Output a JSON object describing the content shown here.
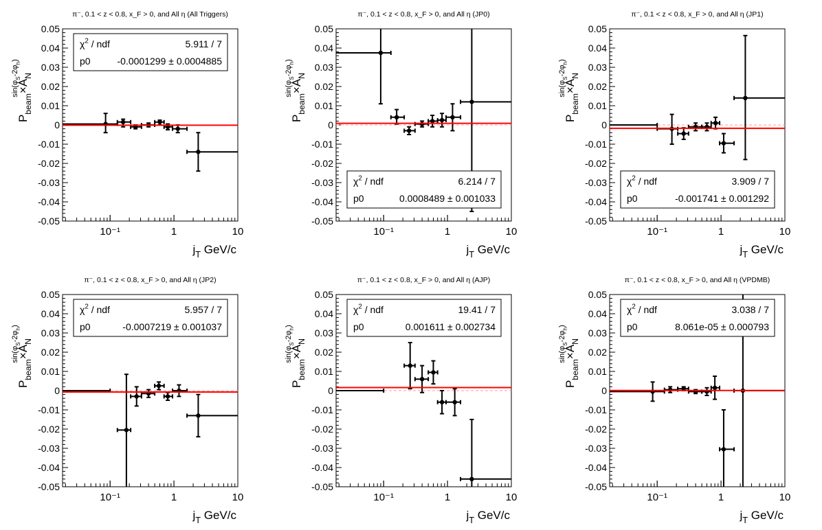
{
  "chart_data": [
    {
      "type": "scatter",
      "title": "π⁻, 0.1 < z < 0.8, x_F > 0, and All η (All Triggers)",
      "trigger": "All Triggers",
      "xlabel": "j_T GeV/c",
      "ylabel": "P_beam×A_N^sin(φ_S-2φ_h)",
      "xscale": "log",
      "xlim": [
        0.018,
        10
      ],
      "ylim": [
        -0.05,
        0.05
      ],
      "xticklabels": [
        "10⁻¹",
        "1",
        "10"
      ],
      "yticklabels": [
        "-0.05",
        "-0.04",
        "-0.03",
        "-0.02",
        "-0.01",
        "0",
        "0.01",
        "0.02",
        "0.03",
        "0.04",
        "0.05"
      ],
      "fit": {
        "chi2_label": "χ² / ndf",
        "chi2": "5.911 / 7",
        "p0_label": "p0",
        "p0": "-0.0001299 ± 0.0004885",
        "p0_value": -0.0001299
      },
      "legend_position": "top",
      "points": [
        {
          "x": 0.085,
          "y": 0.0005,
          "xlo": 0.018,
          "xhi": 0.13,
          "ylo": -0.004,
          "yhi": 0.006
        },
        {
          "x": 0.16,
          "y": 0.0015,
          "xlo": 0.13,
          "xhi": 0.21,
          "ylo": -0.001,
          "yhi": 0.003
        },
        {
          "x": 0.25,
          "y": -0.001,
          "xlo": 0.21,
          "xhi": 0.31,
          "ylo": -0.002,
          "yhi": 0.0
        },
        {
          "x": 0.4,
          "y": 0.0,
          "xlo": 0.31,
          "xhi": 0.5,
          "ylo": -0.001,
          "yhi": 0.001
        },
        {
          "x": 0.6,
          "y": 0.0015,
          "xlo": 0.5,
          "xhi": 0.7,
          "ylo": 0.0,
          "yhi": 0.0025
        },
        {
          "x": 0.8,
          "y": -0.001,
          "xlo": 0.7,
          "xhi": 0.95,
          "ylo": -0.0025,
          "yhi": 0.0005
        },
        {
          "x": 1.15,
          "y": -0.002,
          "xlo": 0.95,
          "xhi": 1.6,
          "ylo": -0.004,
          "yhi": 0.0
        },
        {
          "x": 2.4,
          "y": -0.014,
          "xlo": 1.6,
          "xhi": 10,
          "ylo": -0.024,
          "yhi": -0.004
        }
      ]
    },
    {
      "type": "scatter",
      "title": "π⁻, 0.1 < z < 0.8, x_F > 0, and All η (JP0)",
      "trigger": "JP0",
      "xlabel": "j_T GeV/c",
      "ylabel": "P_beam×A_N^sin(φ_S-2φ_h)",
      "xscale": "log",
      "xlim": [
        0.018,
        10
      ],
      "ylim": [
        -0.05,
        0.05
      ],
      "xticklabels": [
        "10⁻¹",
        "1",
        "10"
      ],
      "yticklabels": [
        "-0.05",
        "-0.04",
        "-0.03",
        "-0.02",
        "-0.01",
        "0",
        "0.01",
        "0.02",
        "0.03",
        "0.04",
        "0.05"
      ],
      "fit": {
        "chi2_label": "χ² / ndf",
        "chi2": "6.214 / 7",
        "p0_label": "p0",
        "p0": "0.0008489 ± 0.001033",
        "p0_value": 0.0008489
      },
      "legend_position": "bottom",
      "points": [
        {
          "x": 0.09,
          "y": 0.0375,
          "xlo": 0.018,
          "xhi": 0.13,
          "ylo": 0.011,
          "yhi": 0.05
        },
        {
          "x": 0.16,
          "y": 0.004,
          "xlo": 0.13,
          "xhi": 0.21,
          "ylo": 0.0005,
          "yhi": 0.008
        },
        {
          "x": 0.25,
          "y": -0.003,
          "xlo": 0.21,
          "xhi": 0.31,
          "ylo": -0.005,
          "yhi": -0.001
        },
        {
          "x": 0.4,
          "y": 0.0005,
          "xlo": 0.31,
          "xhi": 0.5,
          "ylo": -0.001,
          "yhi": 0.002
        },
        {
          "x": 0.58,
          "y": 0.002,
          "xlo": 0.5,
          "xhi": 0.7,
          "ylo": -0.001,
          "yhi": 0.005
        },
        {
          "x": 0.82,
          "y": 0.0025,
          "xlo": 0.7,
          "xhi": 0.95,
          "ylo": -0.001,
          "yhi": 0.006
        },
        {
          "x": 1.2,
          "y": 0.004,
          "xlo": 0.95,
          "xhi": 1.6,
          "ylo": -0.003,
          "yhi": 0.011
        },
        {
          "x": 2.4,
          "y": 0.012,
          "xlo": 1.6,
          "xhi": 10,
          "ylo": -0.045,
          "yhi": 0.05
        }
      ]
    },
    {
      "type": "scatter",
      "title": "π⁻, 0.1 < z < 0.8, x_F > 0, and All η (JP1)",
      "trigger": "JP1",
      "xlabel": "j_T GeV/c",
      "ylabel": "P_beam×A_N^sin(φ_S-2φ_h)",
      "xscale": "log",
      "xlim": [
        0.018,
        10
      ],
      "ylim": [
        -0.05,
        0.05
      ],
      "xticklabels": [
        "10⁻¹",
        "1",
        "10"
      ],
      "yticklabels": [
        "-0.05",
        "-0.04",
        "-0.03",
        "-0.02",
        "-0.01",
        "0",
        "0.01",
        "0.02",
        "0.03",
        "0.04",
        "0.05"
      ],
      "fit": {
        "chi2_label": "χ² / ndf",
        "chi2": "3.909 / 7",
        "p0_label": "p0",
        "p0": "-0.001741 ± 0.001292",
        "p0_value": -0.001741
      },
      "legend_position": "bottom",
      "points": [
        {
          "x": 0.06,
          "y": 0.0,
          "xlo": 0.018,
          "xhi": 0.1,
          "ylo": 0.0,
          "yhi": 0.0
        },
        {
          "x": 0.17,
          "y": -0.002,
          "xlo": 0.1,
          "xhi": 0.21,
          "ylo": -0.01,
          "yhi": 0.0055
        },
        {
          "x": 0.26,
          "y": -0.0045,
          "xlo": 0.21,
          "xhi": 0.31,
          "ylo": -0.0075,
          "yhi": -0.0015
        },
        {
          "x": 0.4,
          "y": -0.001,
          "xlo": 0.31,
          "xhi": 0.5,
          "ylo": -0.003,
          "yhi": 0.001
        },
        {
          "x": 0.6,
          "y": -0.001,
          "xlo": 0.5,
          "xhi": 0.7,
          "ylo": -0.003,
          "yhi": 0.001
        },
        {
          "x": 0.82,
          "y": 0.001,
          "xlo": 0.7,
          "xhi": 0.95,
          "ylo": -0.002,
          "yhi": 0.004
        },
        {
          "x": 1.1,
          "y": -0.0095,
          "xlo": 0.95,
          "xhi": 1.6,
          "ylo": -0.0145,
          "yhi": -0.0045
        },
        {
          "x": 2.4,
          "y": 0.014,
          "xlo": 1.6,
          "xhi": 10,
          "ylo": -0.018,
          "yhi": 0.0465
        }
      ]
    },
    {
      "type": "scatter",
      "title": "π⁻, 0.1 < z < 0.8, x_F > 0, and All η (JP2)",
      "trigger": "JP2",
      "xlabel": "j_T GeV/c",
      "ylabel": "P_beam×A_N^sin(φ_S-2φ_h)",
      "xscale": "log",
      "xlim": [
        0.018,
        10
      ],
      "ylim": [
        -0.05,
        0.05
      ],
      "xticklabels": [
        "10⁻¹",
        "1",
        "10"
      ],
      "yticklabels": [
        "-0.05",
        "-0.04",
        "-0.03",
        "-0.02",
        "-0.01",
        "0",
        "0.01",
        "0.02",
        "0.03",
        "0.04",
        "0.05"
      ],
      "fit": {
        "chi2_label": "χ² / ndf",
        "chi2": "5.957 / 7",
        "p0_label": "p0",
        "p0": "-0.0007219 ± 0.001037",
        "p0_value": -0.0007219
      },
      "legend_position": "top",
      "points": [
        {
          "x": 0.06,
          "y": 0.0,
          "xlo": 0.018,
          "xhi": 0.1,
          "ylo": 0.0,
          "yhi": 0.0
        },
        {
          "x": 0.18,
          "y": -0.0205,
          "xlo": 0.13,
          "xhi": 0.21,
          "ylo": -0.05,
          "yhi": 0.0085
        },
        {
          "x": 0.26,
          "y": -0.003,
          "xlo": 0.21,
          "xhi": 0.31,
          "ylo": -0.008,
          "yhi": 0.002
        },
        {
          "x": 0.4,
          "y": -0.0015,
          "xlo": 0.31,
          "xhi": 0.5,
          "ylo": -0.0035,
          "yhi": 0.0005
        },
        {
          "x": 0.58,
          "y": 0.0025,
          "xlo": 0.5,
          "xhi": 0.7,
          "ylo": 0.0005,
          "yhi": 0.0045
        },
        {
          "x": 0.8,
          "y": -0.003,
          "xlo": 0.7,
          "xhi": 0.95,
          "ylo": -0.005,
          "yhi": -0.001
        },
        {
          "x": 1.2,
          "y": 0.0,
          "xlo": 0.95,
          "xhi": 1.6,
          "ylo": -0.003,
          "yhi": 0.003
        },
        {
          "x": 2.4,
          "y": -0.013,
          "xlo": 1.6,
          "xhi": 10,
          "ylo": -0.024,
          "yhi": -0.002
        }
      ]
    },
    {
      "type": "scatter",
      "title": "π⁻, 0.1 < z < 0.8, x_F > 0, and All η (AJP)",
      "trigger": "AJP",
      "xlabel": "j_T GeV/c",
      "ylabel": "P_beam×A_N^sin(φ_S-2φ_h)",
      "xscale": "log",
      "xlim": [
        0.018,
        10
      ],
      "ylim": [
        -0.05,
        0.05
      ],
      "xticklabels": [
        "10⁻¹",
        "1",
        "10"
      ],
      "yticklabels": [
        "-0.05",
        "-0.04",
        "-0.03",
        "-0.02",
        "-0.01",
        "0",
        "0.01",
        "0.02",
        "0.03",
        "0.04",
        "0.05"
      ],
      "fit": {
        "chi2_label": "χ² / ndf",
        "chi2": "19.41 / 7",
        "p0_label": "p0",
        "p0": "0.001611 ± 0.002734",
        "p0_value": 0.001611
      },
      "legend_position": "top",
      "points": [
        {
          "x": 0.06,
          "y": 0.0,
          "xlo": 0.018,
          "xhi": 0.1,
          "ylo": 0.0,
          "yhi": 0.0
        },
        {
          "x": 0.26,
          "y": 0.013,
          "xlo": 0.21,
          "xhi": 0.31,
          "ylo": 0.001,
          "yhi": 0.025
        },
        {
          "x": 0.4,
          "y": 0.006,
          "xlo": 0.31,
          "xhi": 0.5,
          "ylo": -0.001,
          "yhi": 0.013
        },
        {
          "x": 0.6,
          "y": 0.0095,
          "xlo": 0.5,
          "xhi": 0.7,
          "ylo": 0.0035,
          "yhi": 0.0155
        },
        {
          "x": 0.82,
          "y": -0.006,
          "xlo": 0.7,
          "xhi": 0.95,
          "ylo": -0.012,
          "yhi": 0.0
        },
        {
          "x": 1.3,
          "y": -0.006,
          "xlo": 0.95,
          "xhi": 1.6,
          "ylo": -0.013,
          "yhi": 0.001
        },
        {
          "x": 2.4,
          "y": -0.046,
          "xlo": 1.6,
          "xhi": 10,
          "ylo": -0.05,
          "yhi": -0.015
        }
      ]
    },
    {
      "type": "scatter",
      "title": "π⁻, 0.1 < z < 0.8, x_F > 0, and All η (VPDMB)",
      "trigger": "VPDMB",
      "xlabel": "j_T GeV/c",
      "ylabel": "P_beam×A_N^sin(φ_S-2φ_h)",
      "xscale": "log",
      "xlim": [
        0.018,
        10
      ],
      "ylim": [
        -0.05,
        0.05
      ],
      "xticklabels": [
        "10⁻¹",
        "1",
        "10"
      ],
      "yticklabels": [
        "-0.05",
        "-0.04",
        "-0.03",
        "-0.02",
        "-0.01",
        "0",
        "0.01",
        "0.02",
        "0.03",
        "0.04",
        "0.05"
      ],
      "fit": {
        "chi2_label": "χ² / ndf",
        "chi2": "3.038 / 7",
        "p0_label": "p0",
        "p0": "8.061e-05 ± 0.000793",
        "p0_value": 8.061e-05
      },
      "legend_position": "top",
      "points": [
        {
          "x": 0.085,
          "y": -0.0005,
          "xlo": 0.018,
          "xhi": 0.13,
          "ylo": -0.0055,
          "yhi": 0.0045
        },
        {
          "x": 0.16,
          "y": 0.0005,
          "xlo": 0.13,
          "xhi": 0.21,
          "ylo": -0.001,
          "yhi": 0.002
        },
        {
          "x": 0.26,
          "y": 0.001,
          "xlo": 0.21,
          "xhi": 0.31,
          "ylo": 0.0,
          "yhi": 0.002
        },
        {
          "x": 0.4,
          "y": -0.0005,
          "xlo": 0.31,
          "xhi": 0.5,
          "ylo": -0.0015,
          "yhi": 0.0005
        },
        {
          "x": 0.6,
          "y": -0.0005,
          "xlo": 0.5,
          "xhi": 0.7,
          "ylo": -0.0025,
          "yhi": 0.0015
        },
        {
          "x": 0.8,
          "y": 0.0015,
          "xlo": 0.7,
          "xhi": 0.95,
          "ylo": -0.0045,
          "yhi": 0.0075
        },
        {
          "x": 1.1,
          "y": -0.0305,
          "xlo": 0.95,
          "xhi": 1.6,
          "ylo": -0.05,
          "yhi": -0.01
        },
        {
          "x": 2.2,
          "y": 0.0,
          "xlo": 1.6,
          "xhi": 10,
          "ylo": -0.05,
          "yhi": 0.05
        }
      ]
    }
  ],
  "colors": {
    "fit_line": "#ff0000",
    "zero_line": "#ff9999",
    "points": "#000000",
    "axes": "#000000"
  }
}
